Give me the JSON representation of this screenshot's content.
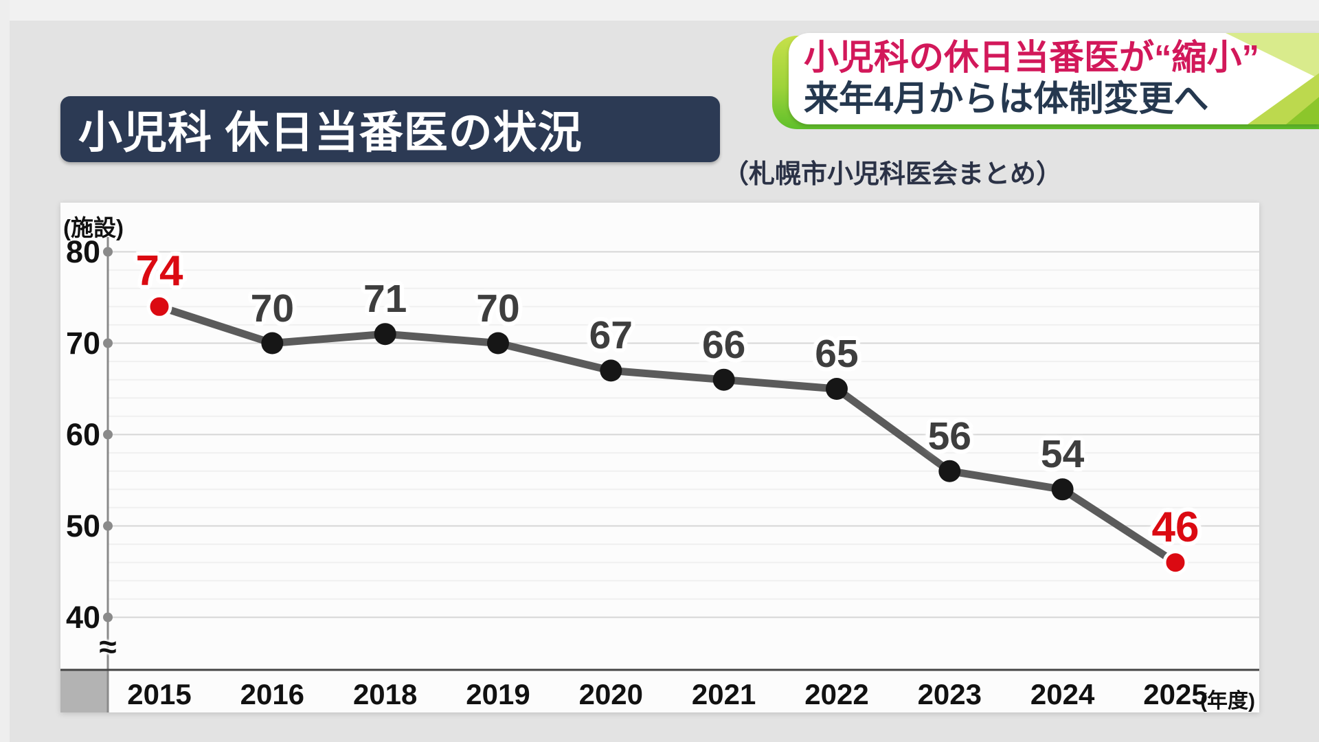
{
  "banner": {
    "line1": "小児科の休日当番医が“縮小”",
    "line2": "来年4月からは体制変更へ",
    "line1_color": "#d2185a",
    "line2_color": "#25384f",
    "accent_green": "#8cc62b"
  },
  "title_bar": {
    "text": "小児科 休日当番医の状況",
    "bg_color": "#2c3a54",
    "text_color": "#ffffff"
  },
  "subtitle": "（札幌市小児科医会まとめ）",
  "chart_data": {
    "type": "line",
    "title": "小児科 休日当番医の状況",
    "source": "札幌市小児科医会まとめ",
    "categories": [
      "2015",
      "2016",
      "2018",
      "2019",
      "2020",
      "2021",
      "2022",
      "2023",
      "2024",
      "2025"
    ],
    "values": [
      74,
      70,
      71,
      70,
      67,
      66,
      65,
      56,
      54,
      46
    ],
    "highlight_indices": [
      0,
      9
    ],
    "unit_label": "(施設)",
    "x_suffix_label": "(年度)",
    "y_ticks": [
      80,
      70,
      60,
      50,
      40
    ],
    "ylim": [
      40,
      80
    ],
    "axis_break_symbol": "≈",
    "grid": "horizontal, major every 10 + faint minor every 2",
    "legend": "none"
  },
  "colors": {
    "page_bg": "#e3e3e3",
    "panel_bg": "#fcfcfc",
    "line": "#5b5b5b",
    "dot": "#161616",
    "highlight_red": "#db0a12",
    "value_label": "#3e3e3e",
    "grid_major": "#d6d6d6",
    "grid_minor": "#f0f0f0",
    "y_axis": "#8a8a8a",
    "x_axis": "#444444",
    "corner_box": "#b3b3b3"
  }
}
